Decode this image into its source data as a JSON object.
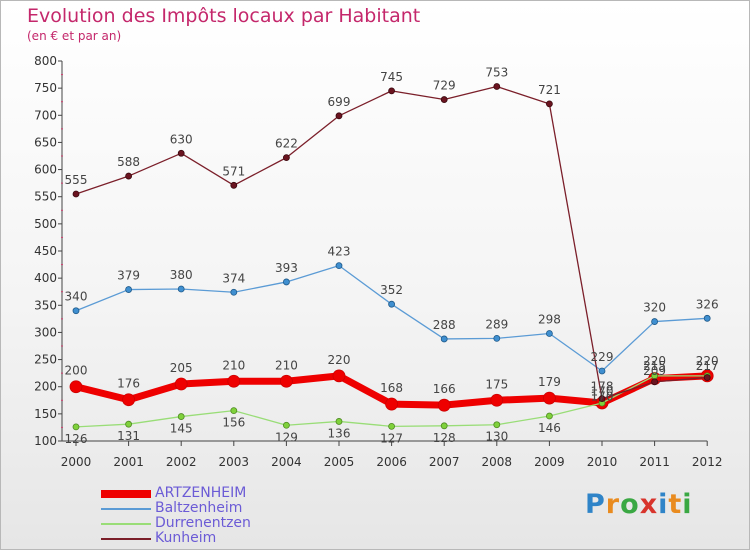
{
  "title": "Evolution des Impôts locaux par Habitant",
  "subtitle": "(en € et par an)",
  "logo": {
    "letters": [
      "P",
      "r",
      "o",
      "x",
      "i",
      "t",
      "i"
    ],
    "colors": [
      "#2f84c8",
      "#e98b1f",
      "#3aa843",
      "#d8342c",
      "#2f84c8",
      "#e98b1f",
      "#3aa843"
    ]
  },
  "chart_data": {
    "type": "line",
    "title": "Evolution des Impôts locaux par Habitant",
    "subtitle": "(en € et par an)",
    "x": [
      "2000",
      "2001",
      "2002",
      "2003",
      "2004",
      "2005",
      "2006",
      "2007",
      "2008",
      "2009",
      "2010",
      "2011",
      "2012"
    ],
    "ylim": [
      100,
      800
    ],
    "yticks": [
      100,
      150,
      200,
      250,
      300,
      350,
      400,
      450,
      500,
      550,
      600,
      650,
      700,
      750,
      800
    ],
    "grid": false,
    "legend_position": "bottom-left",
    "series": [
      {
        "name": "ARTZENHEIM",
        "color": "#ee0000",
        "values": [
          200,
          176,
          205,
          210,
          210,
          220,
          168,
          166,
          175,
          179,
          170,
          215,
          220
        ],
        "labels": [
          "200",
          "176",
          "205",
          "210",
          "210",
          "220",
          "168",
          "166",
          "175",
          "179",
          "",
          "",
          ""
        ]
      },
      {
        "name": "Baltzenheim",
        "color": "#5b9bd5",
        "values": [
          340,
          379,
          380,
          374,
          393,
          423,
          352,
          288,
          289,
          298,
          229,
          320,
          326
        ],
        "labels": [
          "340",
          "379",
          "380",
          "374",
          "393",
          "423",
          "352",
          "288",
          "289",
          "298",
          "229",
          "320",
          "326"
        ]
      },
      {
        "name": "Durrenentzen",
        "color": "#99dd77",
        "values": [
          126,
          131,
          145,
          156,
          129,
          136,
          127,
          128,
          130,
          146,
          170,
          220,
          220
        ],
        "labels": [
          "126",
          "131",
          "145",
          "156",
          "129",
          "136",
          "127",
          "128",
          "130",
          "146",
          "",
          "",
          ""
        ]
      },
      {
        "name": "Kunheim",
        "color": "#7b1f2a",
        "values": [
          555,
          588,
          630,
          571,
          622,
          699,
          745,
          729,
          753,
          721,
          178,
          209,
          217
        ],
        "labels": [
          "555",
          "588",
          "630",
          "571",
          "622",
          "699",
          "745",
          "729",
          "753",
          "721",
          "",
          "",
          ""
        ]
      }
    ],
    "overlap_labels": [
      {
        "x_index": 10,
        "lines": [
          "178",
          "170",
          "170"
        ]
      },
      {
        "x_index": 11,
        "lines": [
          "220",
          "215",
          "209"
        ]
      },
      {
        "x_index": 12,
        "lines": [
          "220",
          "217"
        ]
      }
    ]
  }
}
